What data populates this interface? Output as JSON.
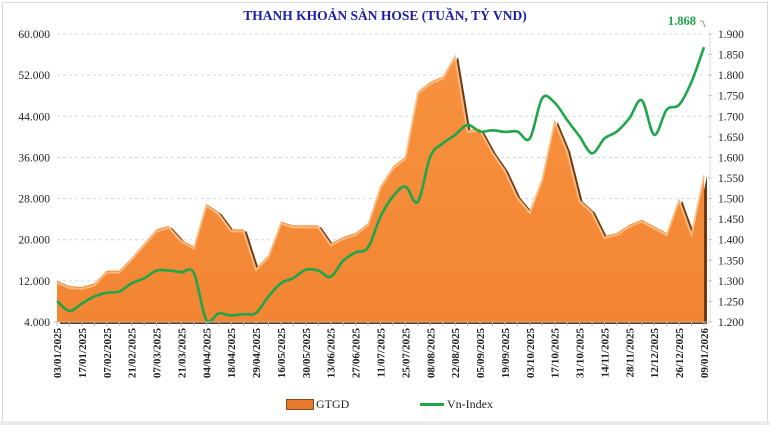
{
  "chart_data": {
    "type": "area+line",
    "title": "THANH KHOẢN SÀN HOSE (TUẦN, TỶ VND)",
    "x_labels": [
      "03/01/2025",
      "",
      "17/01/2025",
      "",
      "07/02/2025",
      "",
      "21/02/2025",
      "",
      "07/03/2025",
      "",
      "21/03/2025",
      "",
      "04/04/2025",
      "",
      "18/04/2025",
      "",
      "29/04/2025",
      "",
      "16/05/2025",
      "",
      "30/05/2025",
      "",
      "13/06/2025",
      "",
      "27/06/2025",
      "",
      "11/07/2025",
      "",
      "25/07/2025",
      "",
      "08/08/2025",
      "",
      "22/08/2025",
      "",
      "05/09/2025",
      "",
      "19/09/2025",
      "",
      "03/10/2025",
      "",
      "17/10/2025",
      "",
      "31/10/2025",
      "",
      "14/11/2025",
      "",
      "28/11/2025",
      "",
      "12/12/2025",
      "",
      "26/12/2025",
      "",
      "09/01/2026"
    ],
    "left_axis": {
      "min": 4000,
      "max": 60000,
      "step": 8000,
      "tick_labels": [
        "4.000",
        "12.000",
        "20.000",
        "28.000",
        "36.000",
        "44.000",
        "52.000",
        "60.000"
      ]
    },
    "right_axis": {
      "min": 1200,
      "max": 1900,
      "step": 50,
      "tick_labels": [
        "1.200",
        "1.250",
        "1.300",
        "1.350",
        "1.400",
        "1.450",
        "1.500",
        "1.550",
        "1.600",
        "1.650",
        "1.700",
        "1.750",
        "1.800",
        "1.850",
        "1.900"
      ]
    },
    "grid": true,
    "legend_position": "bottom",
    "series": [
      {
        "name": "GTGD",
        "type": "area",
        "axis": "left",
        "color": "#F58A3A",
        "values": [
          12000,
          11000,
          10800,
          11500,
          14000,
          14000,
          16500,
          19300,
          22000,
          22700,
          20000,
          18700,
          27000,
          25300,
          22000,
          22000,
          14500,
          17000,
          23500,
          22800,
          22800,
          22800,
          19300,
          20500,
          21300,
          23200,
          30500,
          34200,
          36200,
          48800,
          50700,
          51700,
          55900,
          41300,
          41600,
          37200,
          33700,
          28500,
          25600,
          32000,
          43300,
          37500,
          27800,
          25600,
          20700,
          21300,
          22900,
          23900,
          22600,
          21300,
          28000,
          21300,
          32800
        ]
      },
      {
        "name": "Vn-Index",
        "type": "line",
        "axis": "right",
        "color": "#1FA64A",
        "values": [
          1251,
          1227,
          1245,
          1262,
          1271,
          1274,
          1294,
          1306,
          1325,
          1325,
          1321,
          1319,
          1205,
          1221,
          1216,
          1219,
          1222,
          1262,
          1294,
          1307,
          1327,
          1325,
          1310,
          1349,
          1369,
          1381,
          1456,
          1505,
          1529,
          1492,
          1602,
          1634,
          1655,
          1679,
          1663,
          1666,
          1662,
          1663,
          1646,
          1744,
          1733,
          1691,
          1651,
          1610,
          1646,
          1663,
          1695,
          1739,
          1655,
          1716,
          1728,
          1784,
          1868
        ]
      }
    ],
    "annotations": [
      {
        "text": "1.868",
        "series": "Vn-Index",
        "color": "#1FA64A"
      }
    ]
  }
}
